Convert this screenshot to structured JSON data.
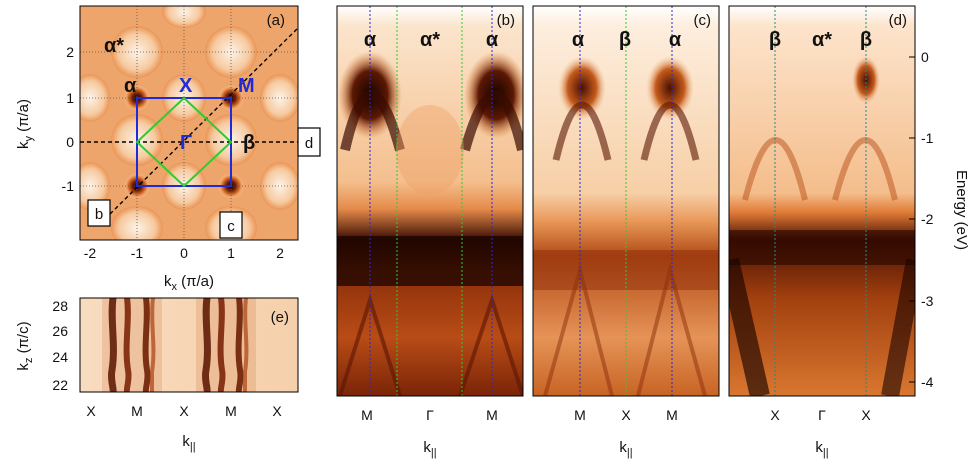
{
  "panels": {
    "a": {
      "label": "(a)",
      "xlabel_main": "k",
      "xlabel_sub": "x",
      "xlabel_unit": " (π/a)",
      "ylabel_main": "k",
      "ylabel_sub": "y",
      "ylabel_unit": " (π/a)",
      "xticks": [
        "-2",
        "-1",
        "0",
        "1",
        "2"
      ],
      "yticks": [
        "2",
        "1",
        "0",
        "-1"
      ],
      "points": {
        "alpha_star": "α*",
        "alpha": "α",
        "X": "X",
        "M": "M",
        "Gamma": "Γ",
        "beta": "β"
      },
      "boxes": {
        "b": "b",
        "c": "c",
        "d": "d"
      }
    },
    "e": {
      "label": "(e)",
      "ylabel_main": "k",
      "ylabel_sub": "z",
      "ylabel_unit": " (π/c)",
      "yticks": [
        "28",
        "26",
        "24",
        "22"
      ],
      "xticks": [
        "X",
        "M",
        "X",
        "M",
        "X"
      ],
      "xlabel_main": "k",
      "xlabel_sub": "||"
    },
    "b": {
      "label": "(b)",
      "top": [
        "α",
        "α*",
        "α"
      ],
      "xticks": [
        "M",
        "Γ",
        "M"
      ],
      "xlabel_main": "k",
      "xlabel_sub": "||"
    },
    "c": {
      "label": "(c)",
      "top": [
        "α",
        "β",
        "α"
      ],
      "xticks": [
        "M",
        "X",
        "M"
      ],
      "xlabel_main": "k",
      "xlabel_sub": "||"
    },
    "d": {
      "label": "(d)",
      "top": [
        "β",
        "α*",
        "β"
      ],
      "xticks": [
        "X",
        "Γ",
        "X"
      ],
      "xlabel_main": "k",
      "xlabel_sub": "||"
    }
  },
  "energy_axis": {
    "label": "Energy (eV)",
    "ticks": [
      "0",
      "-1",
      "-2",
      "-3",
      "-4"
    ]
  },
  "colors": {
    "bg": "#fbe8d4",
    "mid": "#e8843a",
    "dark": "#2a0a02",
    "blue": "#1f2bd6",
    "green": "#2ecc2e"
  }
}
